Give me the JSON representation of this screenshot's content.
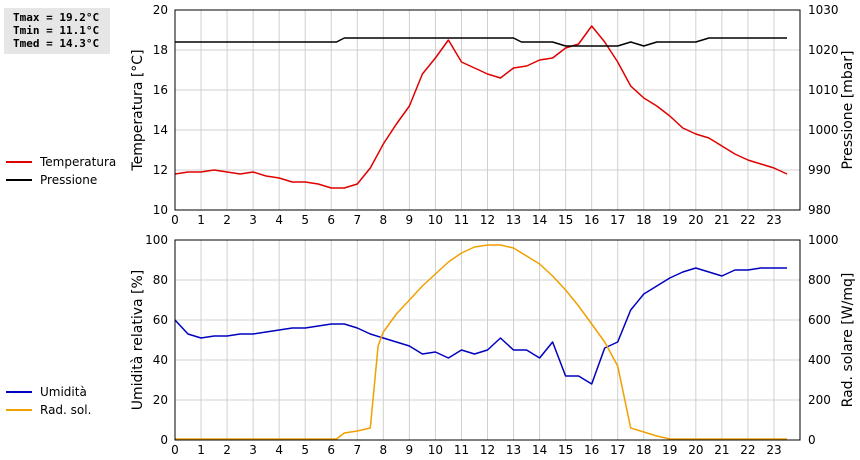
{
  "stats": {
    "tmax": "Tmax = 19.2°C",
    "tmin": "Tmin = 11.1°C",
    "tmed": "Tmed = 14.3°C"
  },
  "legend_top": [
    {
      "label": "Temperatura",
      "color": "#e00000"
    },
    {
      "label": "Pressione",
      "color": "#000000"
    }
  ],
  "legend_bottom": [
    {
      "label": "Umidità",
      "color": "#0000c0"
    },
    {
      "label": "Rad. sol.",
      "color": "#f0a000"
    }
  ],
  "chart_data": [
    {
      "type": "line",
      "xlim": [
        0,
        24
      ],
      "xticks": [
        "0",
        "1",
        "2",
        "3",
        "4",
        "5",
        "6",
        "7",
        "8",
        "9",
        "10",
        "11",
        "12",
        "13",
        "14",
        "15",
        "16",
        "17",
        "18",
        "19",
        "20",
        "21",
        "22",
        "23"
      ],
      "ylabel": "Temperatura [°C]",
      "ylim": [
        10,
        20
      ],
      "yticks": [
        "10",
        "12",
        "14",
        "16",
        "18",
        "20"
      ],
      "y2label": "Pressione [mbar]",
      "y2lim": [
        980,
        1030
      ],
      "y2ticks": [
        "980",
        "990",
        "1000",
        "1010",
        "1020",
        "1030"
      ],
      "grid": true,
      "series": [
        {
          "name": "Temperatura",
          "axis": "left",
          "color": "#e00000",
          "x": [
            0,
            0.5,
            1,
            1.5,
            2,
            2.5,
            3,
            3.5,
            4,
            4.5,
            5,
            5.5,
            6,
            6.5,
            7,
            7.5,
            8,
            8.5,
            9,
            9.5,
            10,
            10.5,
            11,
            11.5,
            12,
            12.5,
            13,
            13.5,
            14,
            14.5,
            15,
            15.5,
            16,
            16.5,
            17,
            17.5,
            18,
            18.5,
            19,
            19.5,
            20,
            20.5,
            21,
            21.5,
            22,
            22.5,
            23,
            23.5
          ],
          "y": [
            11.8,
            11.9,
            11.9,
            12.0,
            11.9,
            11.8,
            11.9,
            11.7,
            11.6,
            11.4,
            11.4,
            11.3,
            11.1,
            11.1,
            11.3,
            12.1,
            13.3,
            14.3,
            15.2,
            16.8,
            17.6,
            18.5,
            17.4,
            17.1,
            16.8,
            16.6,
            17.1,
            17.2,
            17.5,
            17.6,
            18.1,
            18.3,
            19.2,
            18.4,
            17.4,
            16.2,
            15.6,
            15.2,
            14.7,
            14.1,
            13.8,
            13.6,
            13.2,
            12.8,
            12.5,
            12.3,
            12.1,
            11.8
          ]
        },
        {
          "name": "Pressione",
          "axis": "right",
          "color": "#000000",
          "x": [
            0,
            6.2,
            6.5,
            13,
            13.3,
            14.5,
            15,
            15.3,
            17,
            17.5,
            18,
            18.5,
            19,
            20,
            20.5,
            23.5
          ],
          "y": [
            1022,
            1022,
            1023,
            1023,
            1022,
            1022,
            1021,
            1021,
            1021,
            1022,
            1021,
            1022,
            1022,
            1022,
            1023,
            1023
          ]
        }
      ]
    },
    {
      "type": "line",
      "xlim": [
        0,
        24
      ],
      "xticks": [
        "0",
        "1",
        "2",
        "3",
        "4",
        "5",
        "6",
        "7",
        "8",
        "9",
        "10",
        "11",
        "12",
        "13",
        "14",
        "15",
        "16",
        "17",
        "18",
        "19",
        "20",
        "21",
        "22",
        "23"
      ],
      "ylabel": "Umidità relativa [%]",
      "ylim": [
        0,
        100
      ],
      "yticks": [
        "0",
        "20",
        "40",
        "60",
        "80",
        "100"
      ],
      "y2label": "Rad. solare [W/mq]",
      "y2lim": [
        0,
        1000
      ],
      "y2ticks": [
        "0",
        "200",
        "400",
        "600",
        "800",
        "1000"
      ],
      "grid": true,
      "series": [
        {
          "name": "Umidità",
          "axis": "left",
          "color": "#0000c0",
          "x": [
            0,
            0.5,
            1,
            1.5,
            2,
            2.5,
            3,
            3.5,
            4,
            4.5,
            5,
            5.5,
            6,
            6.5,
            7,
            7.5,
            8,
            8.5,
            9,
            9.5,
            10,
            10.5,
            11,
            11.5,
            12,
            12.5,
            13,
            13.5,
            14,
            14.5,
            15,
            15.5,
            16,
            16.5,
            17,
            17.5,
            18,
            18.5,
            19,
            19.5,
            20,
            20.5,
            21,
            21.5,
            22,
            22.5,
            23,
            23.5
          ],
          "y": [
            60,
            53,
            51,
            52,
            52,
            53,
            53,
            54,
            55,
            56,
            56,
            57,
            58,
            58,
            56,
            53,
            51,
            49,
            47,
            43,
            44,
            41,
            45,
            43,
            45,
            51,
            45,
            45,
            41,
            49,
            32,
            32,
            28,
            46,
            49,
            65,
            73,
            77,
            81,
            84,
            86,
            84,
            82,
            85,
            85,
            86,
            86,
            86
          ]
        },
        {
          "name": "Rad. sol.",
          "axis": "right",
          "color": "#f0a000",
          "x": [
            0,
            6,
            6.2,
            6.5,
            7,
            7.5,
            7.8,
            8,
            8.5,
            9,
            9.5,
            10,
            10.5,
            11,
            11.5,
            12,
            12.5,
            13,
            13.5,
            14,
            14.5,
            15,
            15.5,
            16,
            16.5,
            17,
            17.5,
            18,
            18.5,
            19,
            23.5
          ],
          "y": [
            5,
            5,
            5,
            35,
            45,
            60,
            470,
            540,
            630,
            700,
            770,
            830,
            890,
            935,
            965,
            975,
            975,
            960,
            920,
            880,
            820,
            750,
            670,
            580,
            490,
            370,
            60,
            40,
            20,
            5,
            5
          ]
        }
      ]
    }
  ]
}
